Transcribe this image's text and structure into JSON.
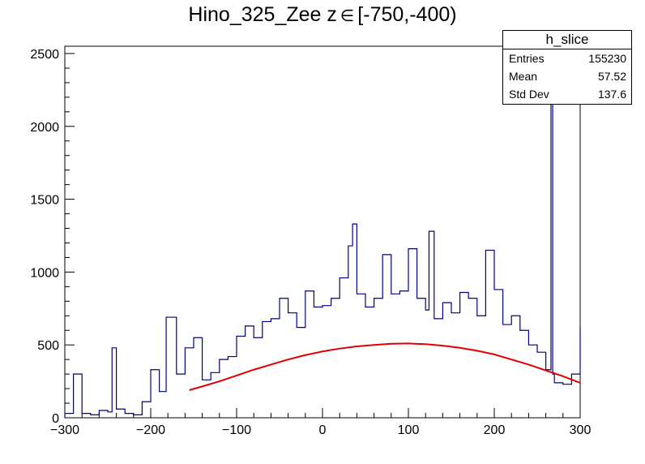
{
  "title": {
    "main": "Hino_325_Zee z",
    "symbol": "∈",
    "range": "[-750,-400)"
  },
  "stats": {
    "name": "h_slice",
    "rows": [
      {
        "label": "Entries",
        "value": "155230"
      },
      {
        "label": "Mean",
        "value": "57.52"
      },
      {
        "label": "Std Dev",
        "value": "137.6"
      }
    ]
  },
  "colors": {
    "histogram": "#000080",
    "fit": "#e00000",
    "axis": "#000000"
  },
  "chart_data": {
    "type": "line",
    "xlim": [
      -300,
      300
    ],
    "ylim": [
      0,
      2550
    ],
    "xticks": [
      -300,
      -200,
      -100,
      0,
      100,
      200,
      300
    ],
    "yticks": [
      0,
      500,
      1000,
      1500,
      2000,
      2500
    ],
    "xlabel": "",
    "ylabel": "",
    "histogram": {
      "x": [
        -300,
        -290,
        -280,
        -270,
        -260,
        -250,
        -245,
        -240,
        -230,
        -220,
        -210,
        -200,
        -190,
        -182,
        -170,
        -160,
        -150,
        -140,
        -130,
        -120,
        -110,
        -100,
        -90,
        -80,
        -70,
        -60,
        -50,
        -40,
        -30,
        -20,
        -10,
        0,
        10,
        20,
        30,
        35,
        40,
        50,
        60,
        70,
        80,
        90,
        100,
        110,
        120,
        124,
        130,
        140,
        150,
        160,
        170,
        180,
        190,
        200,
        210,
        220,
        230,
        240,
        250,
        260,
        266,
        268,
        270,
        280,
        290,
        300
      ],
      "y": [
        30,
        300,
        30,
        20,
        50,
        40,
        480,
        60,
        30,
        20,
        110,
        330,
        180,
        690,
        300,
        480,
        550,
        260,
        310,
        400,
        420,
        560,
        630,
        550,
        660,
        680,
        820,
        720,
        620,
        870,
        760,
        770,
        820,
        960,
        1180,
        1330,
        850,
        760,
        820,
        1120,
        850,
        870,
        1160,
        820,
        740,
        1280,
        680,
        790,
        720,
        860,
        820,
        700,
        1150,
        880,
        640,
        700,
        600,
        500,
        450,
        330,
        2380,
        300,
        240,
        230,
        300,
        620
      ]
    },
    "fit": {
      "x": [
        -155,
        -140,
        -120,
        -100,
        -80,
        -60,
        -40,
        -20,
        0,
        20,
        40,
        60,
        80,
        100,
        120,
        140,
        160,
        180,
        200,
        220,
        240,
        260,
        280,
        300
      ],
      "y": [
        190,
        215,
        250,
        290,
        330,
        365,
        400,
        430,
        455,
        475,
        490,
        500,
        508,
        510,
        505,
        495,
        480,
        460,
        435,
        400,
        365,
        325,
        285,
        240
      ]
    }
  }
}
